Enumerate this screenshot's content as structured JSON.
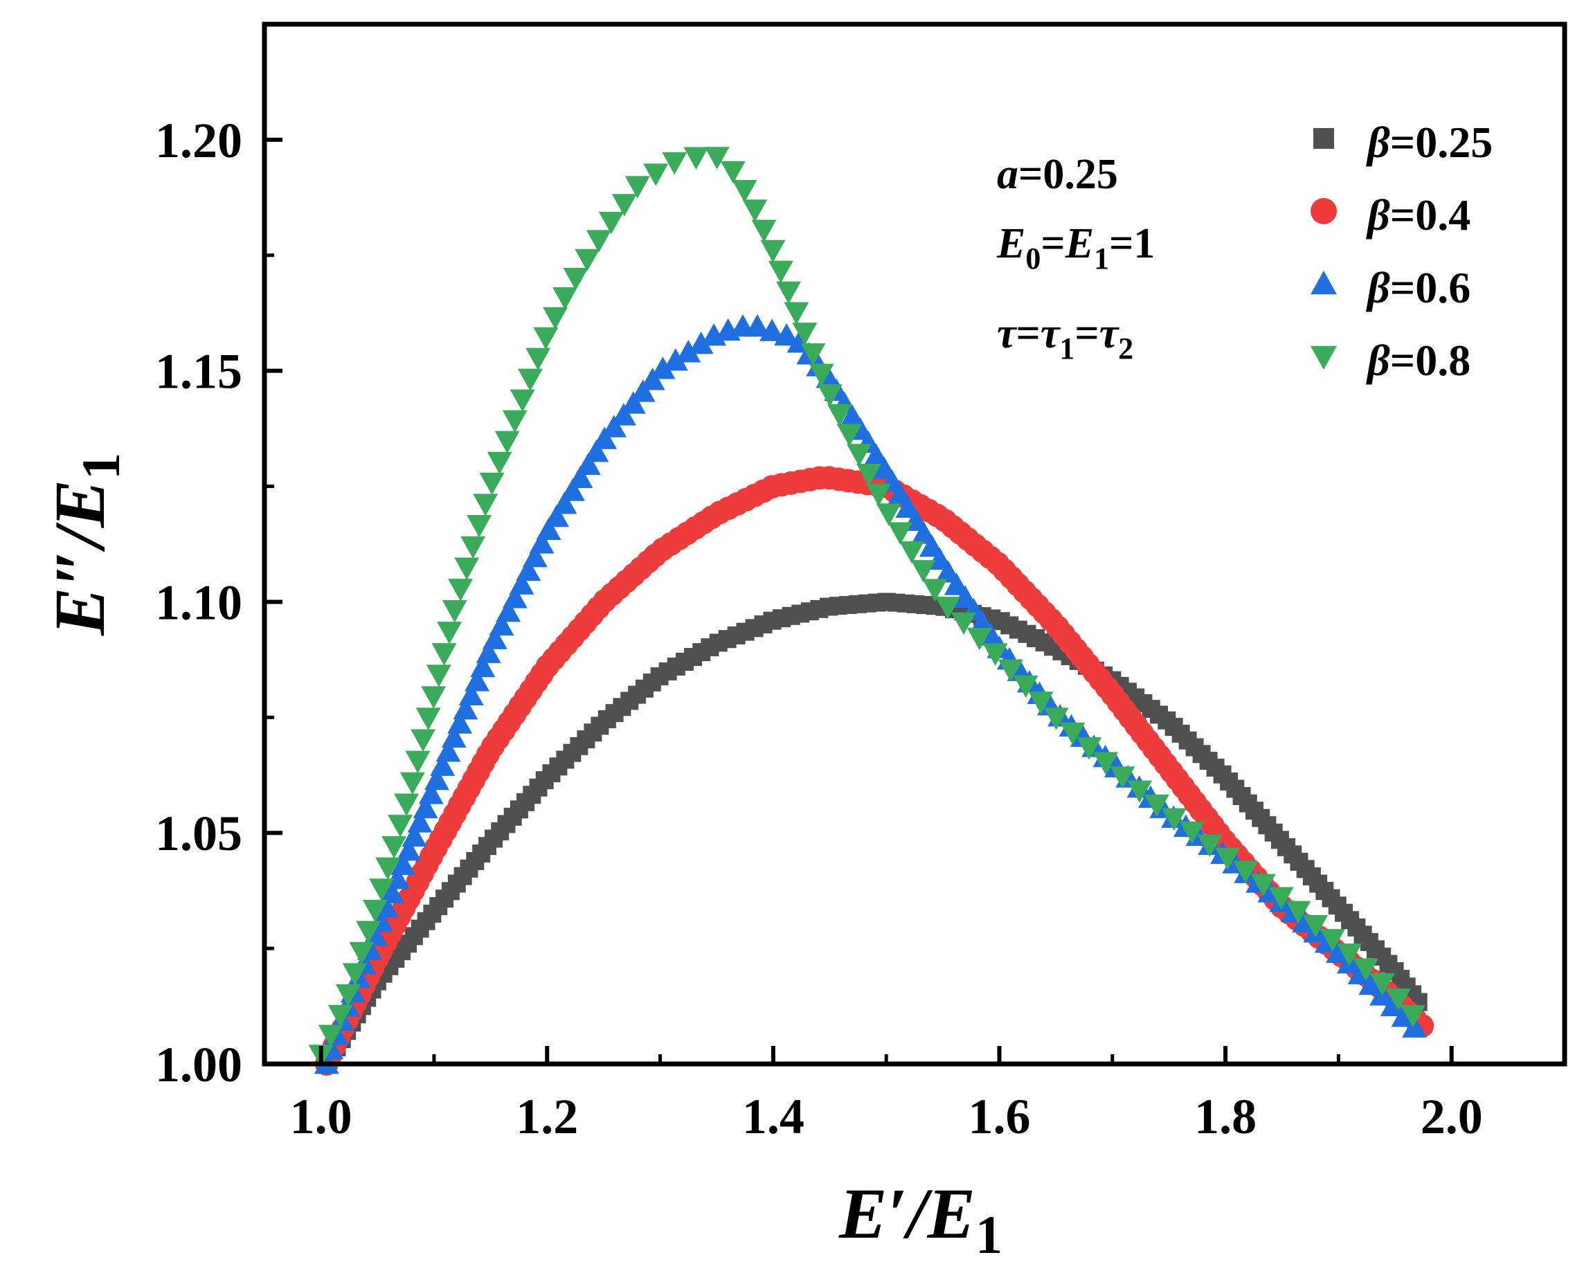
{
  "chart_data": {
    "type": "scatter",
    "xlabel": "E′/E1",
    "ylabel": "E″/E1",
    "xlim": [
      0.95,
      2.1
    ],
    "ylim": [
      1.0,
      1.225
    ],
    "xticks": [
      "1.0",
      "1.2",
      "1.4",
      "1.6",
      "1.8",
      "2.0"
    ],
    "yticks": [
      "1.00",
      "1.05",
      "1.10",
      "1.15",
      "1.20"
    ],
    "annotations": [
      "a=0.25",
      "E0=E1=1",
      "τ=τ1=τ2"
    ],
    "legend_position": "top-right",
    "series": [
      {
        "name": "β=0.25",
        "marker": "square",
        "color": "#505050",
        "points": [
          [
            1.005,
            1.0
          ],
          [
            1.01,
            1.002
          ],
          [
            1.05,
            1.018
          ],
          [
            1.1,
            1.033
          ],
          [
            1.15,
            1.048
          ],
          [
            1.2,
            1.062
          ],
          [
            1.25,
            1.074
          ],
          [
            1.3,
            1.084
          ],
          [
            1.35,
            1.091
          ],
          [
            1.4,
            1.096
          ],
          [
            1.45,
            1.099
          ],
          [
            1.5,
            1.1
          ],
          [
            1.55,
            1.099
          ],
          [
            1.6,
            1.096
          ],
          [
            1.65,
            1.09
          ],
          [
            1.7,
            1.083
          ],
          [
            1.75,
            1.074
          ],
          [
            1.8,
            1.062
          ],
          [
            1.85,
            1.048
          ],
          [
            1.9,
            1.034
          ],
          [
            1.95,
            1.02
          ],
          [
            1.975,
            1.012
          ]
        ]
      },
      {
        "name": "β=0.4",
        "marker": "circle",
        "color": "#ee3b3b",
        "points": [
          [
            1.005,
            1.0
          ],
          [
            1.01,
            1.003
          ],
          [
            1.05,
            1.023
          ],
          [
            1.1,
            1.046
          ],
          [
            1.15,
            1.068
          ],
          [
            1.2,
            1.086
          ],
          [
            1.25,
            1.1
          ],
          [
            1.3,
            1.111
          ],
          [
            1.35,
            1.119
          ],
          [
            1.4,
            1.125
          ],
          [
            1.445,
            1.127
          ],
          [
            1.5,
            1.125
          ],
          [
            1.55,
            1.118
          ],
          [
            1.6,
            1.108
          ],
          [
            1.65,
            1.095
          ],
          [
            1.7,
            1.08
          ],
          [
            1.75,
            1.064
          ],
          [
            1.8,
            1.048
          ],
          [
            1.85,
            1.034
          ],
          [
            1.9,
            1.024
          ],
          [
            1.95,
            1.014
          ],
          [
            1.975,
            1.008
          ]
        ]
      },
      {
        "name": "β=0.6",
        "marker": "triangle-up",
        "color": "#1f6fe0",
        "points": [
          [
            1.005,
            1.0
          ],
          [
            1.01,
            1.004
          ],
          [
            1.05,
            1.029
          ],
          [
            1.1,
            1.06
          ],
          [
            1.15,
            1.09
          ],
          [
            1.2,
            1.115
          ],
          [
            1.25,
            1.135
          ],
          [
            1.3,
            1.15
          ],
          [
            1.35,
            1.158
          ],
          [
            1.38,
            1.16
          ],
          [
            1.42,
            1.157
          ],
          [
            1.45,
            1.148
          ],
          [
            1.5,
            1.128
          ],
          [
            1.55,
            1.108
          ],
          [
            1.6,
            1.09
          ],
          [
            1.65,
            1.076
          ],
          [
            1.7,
            1.065
          ],
          [
            1.75,
            1.054
          ],
          [
            1.8,
            1.045
          ],
          [
            1.85,
            1.035
          ],
          [
            1.9,
            1.024
          ],
          [
            1.95,
            1.012
          ],
          [
            1.975,
            1.006
          ]
        ]
      },
      {
        "name": "β=0.8",
        "marker": "triangle-down",
        "color": "#3aab5a",
        "points": [
          [
            1.0,
            1.002
          ],
          [
            1.02,
            1.012
          ],
          [
            1.05,
            1.035
          ],
          [
            1.08,
            1.06
          ],
          [
            1.1,
            1.08
          ],
          [
            1.12,
            1.1
          ],
          [
            1.15,
            1.125
          ],
          [
            1.18,
            1.145
          ],
          [
            1.2,
            1.158
          ],
          [
            1.22,
            1.168
          ],
          [
            1.25,
            1.18
          ],
          [
            1.28,
            1.19
          ],
          [
            1.31,
            1.195
          ],
          [
            1.345,
            1.197
          ],
          [
            1.36,
            1.195
          ],
          [
            1.38,
            1.187
          ],
          [
            1.4,
            1.176
          ],
          [
            1.42,
            1.163
          ],
          [
            1.45,
            1.145
          ],
          [
            1.5,
            1.12
          ],
          [
            1.55,
            1.1
          ],
          [
            1.6,
            1.088
          ],
          [
            1.65,
            1.075
          ],
          [
            1.7,
            1.064
          ],
          [
            1.75,
            1.054
          ],
          [
            1.8,
            1.045
          ],
          [
            1.85,
            1.036
          ],
          [
            1.9,
            1.026
          ],
          [
            1.95,
            1.015
          ],
          [
            1.975,
            1.008
          ]
        ]
      }
    ]
  }
}
